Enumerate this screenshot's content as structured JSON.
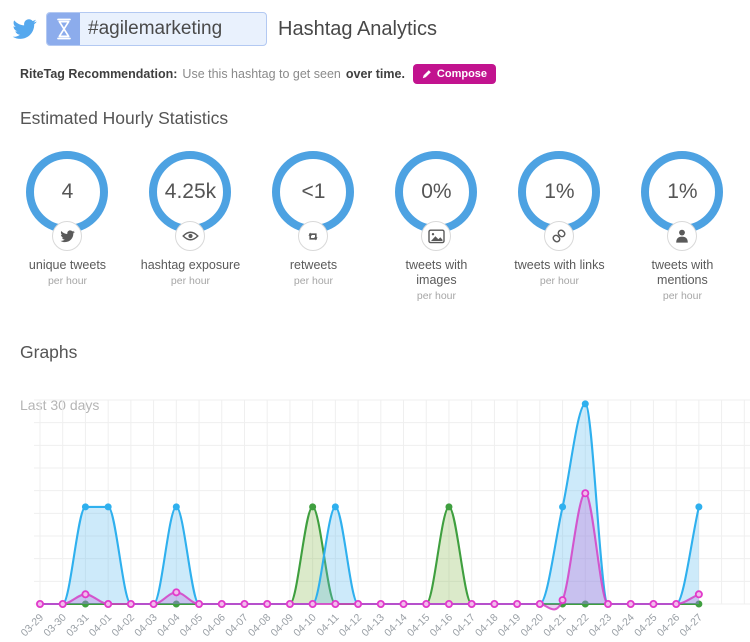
{
  "header": {
    "network": "twitter",
    "hashtag": "#agilemarketing",
    "title": "Hashtag Analytics"
  },
  "recommendation": {
    "label": "RiteTag Recommendation:",
    "body": "Use this hashtag to get seen",
    "emphasis": "over time.",
    "compose": "Compose",
    "compose_color": "#c2138f"
  },
  "stats": {
    "heading": "Estimated Hourly Statistics",
    "ring_color": "#4da2e2",
    "items": [
      {
        "value": "4",
        "icon": "twitter-icon",
        "label": "unique tweets",
        "sublabel": "per hour"
      },
      {
        "value": "4.25k",
        "icon": "eye-icon",
        "label": "hashtag exposure",
        "sublabel": "per hour"
      },
      {
        "value": "<1",
        "icon": "retweet-icon",
        "label": "retweets",
        "sublabel": "per hour"
      },
      {
        "value": "0%",
        "icon": "image-icon",
        "label": "tweets with images",
        "sublabel": "per hour"
      },
      {
        "value": "1%",
        "icon": "link-icon",
        "label": "tweets with links",
        "sublabel": "per hour"
      },
      {
        "value": "1%",
        "icon": "mention-icon",
        "label": "tweets with mentions",
        "sublabel": "per hour"
      }
    ]
  },
  "graphs": {
    "heading": "Graphs",
    "range": "Last 30 days"
  },
  "chart_data": {
    "type": "area",
    "title": "Last 30 days",
    "x": [
      "03-29",
      "03-30",
      "03-31",
      "04-01",
      "04-02",
      "04-03",
      "04-04",
      "04-05",
      "04-06",
      "04-07",
      "04-08",
      "04-09",
      "04-10",
      "04-11",
      "04-12",
      "04-13",
      "04-14",
      "04-15",
      "04-16",
      "04-17",
      "04-18",
      "04-19",
      "04-20",
      "04-21",
      "04-22",
      "04-23",
      "04-24",
      "04-25",
      "04-26",
      "04-27"
    ],
    "ylim": [
      0,
      105
    ],
    "grid": true,
    "legend": "none",
    "series": [
      {
        "name": "green",
        "color": "#3f9f3f",
        "fill": "rgba(124,179,66,0.28)",
        "point": "solid",
        "pointColor": "#3f9f3f",
        "values": [
          0,
          0,
          0,
          0,
          0,
          0,
          0,
          0,
          0,
          0,
          0,
          0,
          50,
          0,
          0,
          0,
          0,
          0,
          50,
          0,
          0,
          0,
          0,
          0,
          0,
          0,
          0,
          0,
          0,
          0
        ]
      },
      {
        "name": "blue",
        "color": "#2fb0ee",
        "fill": "rgba(88,187,240,0.30)",
        "point": "solid",
        "pointColor": "#2fb0ee",
        "values": [
          0,
          0,
          50,
          50,
          0,
          0,
          50,
          0,
          0,
          0,
          0,
          0,
          0,
          50,
          0,
          0,
          0,
          0,
          0,
          0,
          0,
          0,
          0,
          50,
          103,
          0,
          0,
          0,
          0,
          50
        ]
      },
      {
        "name": "magenta",
        "color": "rgba(212,58,196,0.82)",
        "fill": "rgba(186,85,211,0.28)",
        "point": "ring",
        "pointColor": "#e13bcb",
        "values": [
          0,
          0,
          5,
          0,
          0,
          0,
          6,
          0,
          0,
          0,
          0,
          0,
          0,
          0,
          0,
          0,
          0,
          0,
          0,
          0,
          0,
          0,
          0,
          2,
          57,
          0,
          0,
          0,
          0,
          5
        ]
      }
    ]
  }
}
